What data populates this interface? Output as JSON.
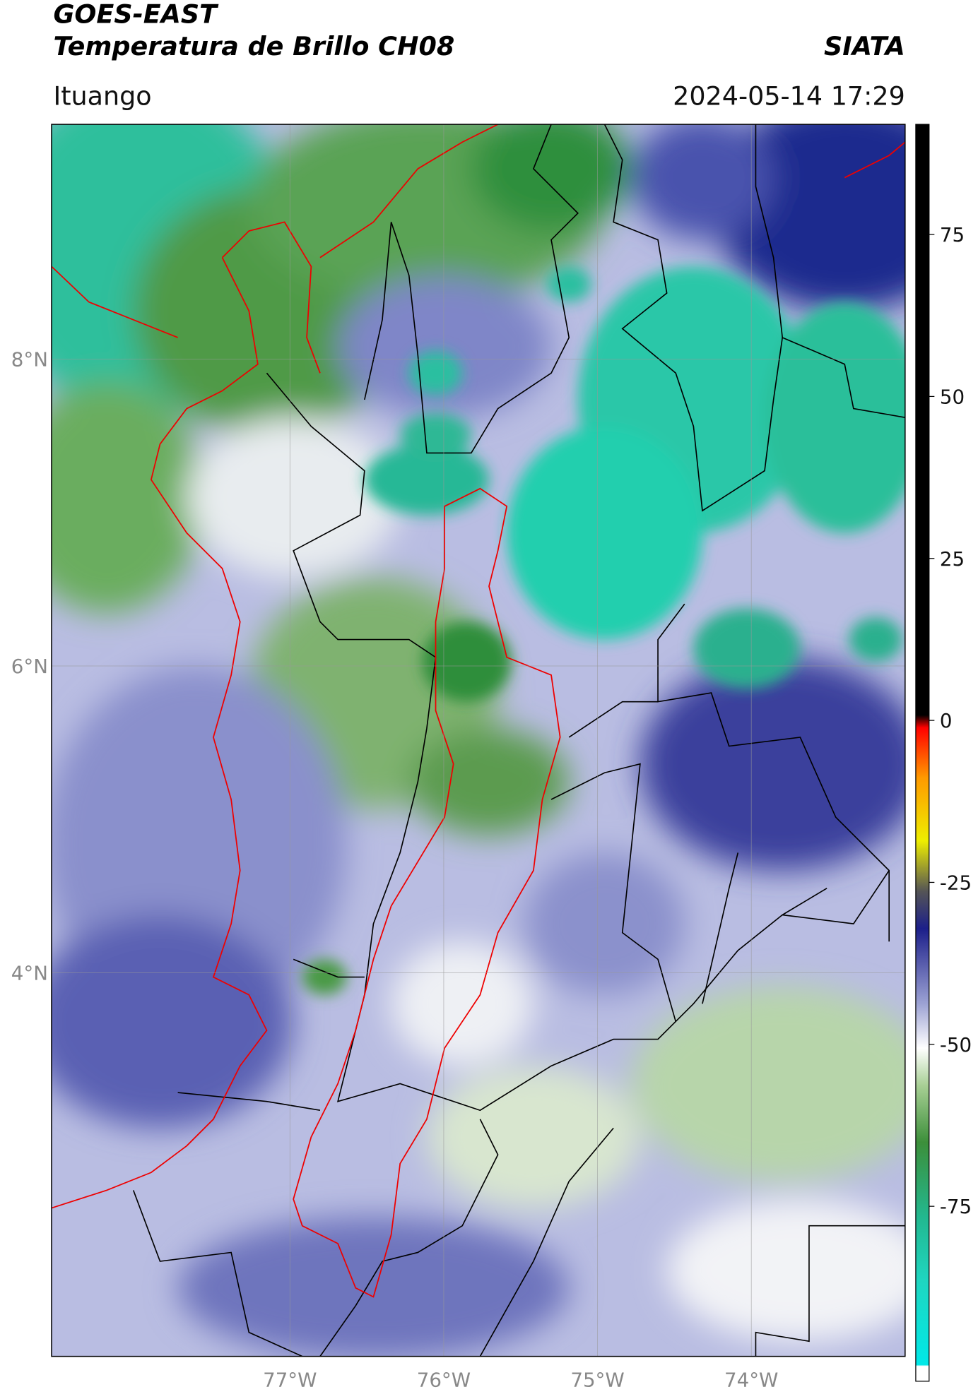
{
  "map": {
    "title": "GOES-EAST",
    "subtitle": "Temperatura de Brillo CH08",
    "source": "SIATA",
    "region": "Ituango",
    "datetime": "2024-05-14 17:29",
    "xlim": [
      -78.55,
      -73.0
    ],
    "ylim": [
      1.5,
      9.53
    ],
    "lon_ticks": [
      {
        "value": -77,
        "label": "77°W"
      },
      {
        "value": -76,
        "label": "76°W"
      },
      {
        "value": -75,
        "label": "75°W"
      },
      {
        "value": -74,
        "label": "74°W"
      }
    ],
    "lat_ticks": [
      {
        "value": 8,
        "label": "8°N"
      },
      {
        "value": 6,
        "label": "6°N"
      },
      {
        "value": 4,
        "label": "4°N"
      }
    ],
    "colorbar": {
      "lim": [
        -102,
        92
      ],
      "ticks": [
        75,
        50,
        25,
        0,
        -25,
        -50,
        -75
      ]
    },
    "grid": true
  }
}
